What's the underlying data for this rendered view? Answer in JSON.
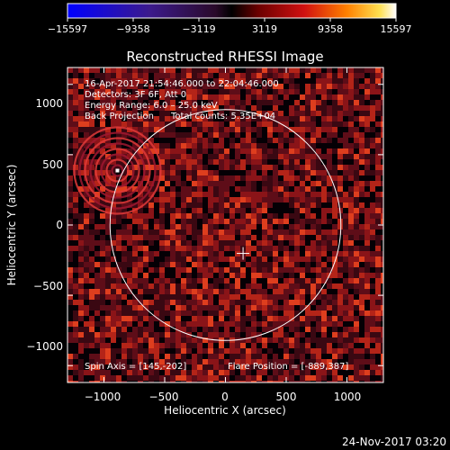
{
  "chart_data": {
    "type": "heatmap",
    "title": "Reconstructed RHESSI Image",
    "xlabel": "Heliocentric X (arcsec)",
    "ylabel": "Heliocentric Y (arcsec)",
    "xlim": [
      -1300,
      1300
    ],
    "ylim": [
      -1120,
      1120
    ],
    "x_ticks": [
      -1000,
      -500,
      0,
      500,
      1000
    ],
    "y_ticks": [
      -1000,
      -500,
      0,
      500,
      1000
    ],
    "x_tick_labels": [
      "−1000",
      "−500",
      "0",
      "500",
      "1000"
    ],
    "y_tick_labels": [
      "−1000",
      "−500",
      "0",
      "500",
      "1000"
    ],
    "colorbar": {
      "min": -15597,
      "max": 15597,
      "tick_labels": [
        "−15597",
        "−9358",
        "−3119",
        "3119",
        "9358",
        "15597"
      ]
    },
    "info_lines": [
      "16-Apr-2017 21:54:46.000 to 22:04:46.000",
      "Detectors: 3F 6F, Att 0",
      "Energy Range: 6.0 – 25.0 keV",
      "Back Projection      Total counts: 5.35E+04"
    ],
    "spin_axis": "Spin Axis = [145,-202]",
    "flare_position": "Flare Position = [-889,387]",
    "solar_limb": {
      "center": [
        0,
        0
      ],
      "radius_arcsec": 950
    },
    "spin_axis_marker": [
      145,
      -202
    ],
    "flare_source": [
      -889,
      387
    ]
  },
  "footer": {
    "timestamp": "24-Nov-2017 03:20"
  }
}
